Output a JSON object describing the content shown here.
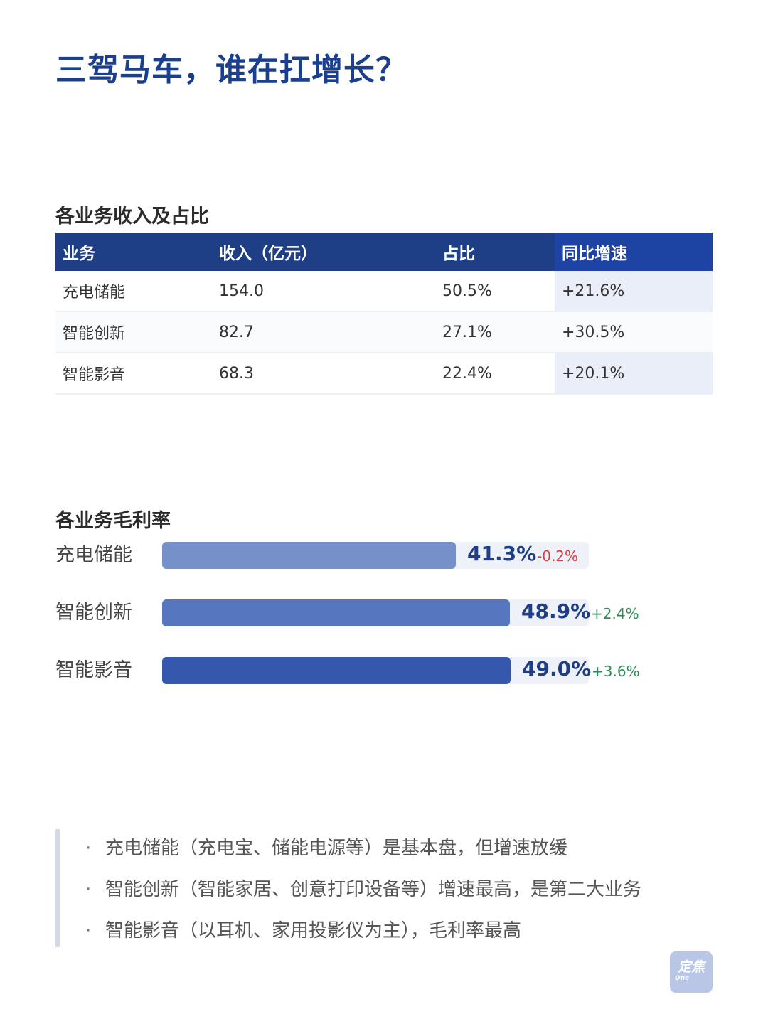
{
  "title": "三驾马车，谁在扛增长？",
  "revenue_table": {
    "title": "各业务收入及占比",
    "headers": [
      "业务",
      "收入（亿元）",
      "占比",
      "同比增速"
    ],
    "rows": [
      [
        "充电储能",
        "154.0",
        "50.5%",
        "+21.6%"
      ],
      [
        "智能创新",
        "82.7",
        "27.1%",
        "+30.5%"
      ],
      [
        "智能影音",
        "68.3",
        "22.4%",
        "+20.1%"
      ]
    ]
  },
  "gross_margin": {
    "title": "各业务毛利率",
    "items": [
      {
        "label": "充电储能",
        "value_text": "41.3%",
        "change_text": "-0.2%"
      },
      {
        "label": "智能创新",
        "value_text": "48.9%",
        "change_text": "+2.4%"
      },
      {
        "label": "智能影音",
        "value_text": "49.0%",
        "change_text": "+3.6%"
      }
    ]
  },
  "chart_data": {
    "type": "bar",
    "orientation": "horizontal",
    "title": "各业务毛利率",
    "categories": [
      "充电储能",
      "智能创新",
      "智能影音"
    ],
    "values": [
      41.3,
      48.9,
      49.0
    ],
    "changes": [
      -0.2,
      2.4,
      3.6
    ],
    "unit": "%",
    "colors": [
      "#7690c9",
      "#5677c0",
      "#3558ac"
    ],
    "track_color": "#eef1f8",
    "value_color": "#1e3f86",
    "change_positive_color": "#2e8a57",
    "change_negative_color": "#d23f3f"
  },
  "notes": [
    "充电储能（充电宝、储能电源等）是基本盘，但增速放缓",
    "智能创新（智能家居、创意打印设备等）增速最高，是第二大业务",
    "智能影音（以耳机、家用投影仪为主），毛利率最高"
  ],
  "bullet_symbol": "·",
  "logo": {
    "main": "定焦",
    "sub": "One"
  }
}
